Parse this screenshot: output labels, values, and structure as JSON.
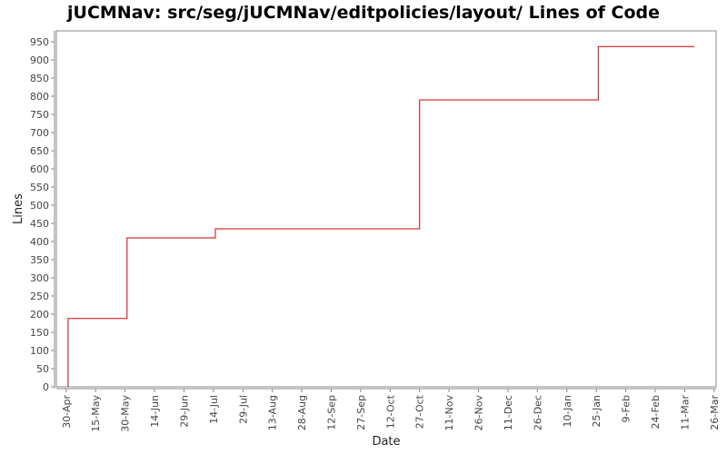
{
  "chart_data": {
    "type": "line",
    "step": true,
    "title": "jUCMNav: src/seg/jUCMNav/editpolicies/layout/ Lines of Code",
    "xlabel": "Date",
    "ylabel": "Lines",
    "ylim": [
      0,
      980
    ],
    "xlim": [
      "2006-04-25",
      "2007-03-27"
    ],
    "yticks": [
      0,
      50,
      100,
      150,
      200,
      250,
      300,
      350,
      400,
      450,
      500,
      550,
      600,
      650,
      700,
      750,
      800,
      850,
      900,
      950
    ],
    "xticks": [
      {
        "date": "2006-04-30",
        "label": "30-Apr"
      },
      {
        "date": "2006-05-15",
        "label": "15-May"
      },
      {
        "date": "2006-05-30",
        "label": "30-May"
      },
      {
        "date": "2006-06-14",
        "label": "14-Jun"
      },
      {
        "date": "2006-06-29",
        "label": "29-Jun"
      },
      {
        "date": "2006-07-14",
        "label": "14-Jul"
      },
      {
        "date": "2006-07-29",
        "label": "29-Jul"
      },
      {
        "date": "2006-08-13",
        "label": "13-Aug"
      },
      {
        "date": "2006-08-28",
        "label": "28-Aug"
      },
      {
        "date": "2006-09-12",
        "label": "12-Sep"
      },
      {
        "date": "2006-09-27",
        "label": "27-Sep"
      },
      {
        "date": "2006-10-12",
        "label": "12-Oct"
      },
      {
        "date": "2006-10-27",
        "label": "27-Oct"
      },
      {
        "date": "2006-11-11",
        "label": "11-Nov"
      },
      {
        "date": "2006-11-26",
        "label": "26-Nov"
      },
      {
        "date": "2006-12-11",
        "label": "11-Dec"
      },
      {
        "date": "2006-12-26",
        "label": "26-Dec"
      },
      {
        "date": "2007-01-10",
        "label": "10-Jan"
      },
      {
        "date": "2007-01-25",
        "label": "25-Jan"
      },
      {
        "date": "2007-02-09",
        "label": "9-Feb"
      },
      {
        "date": "2007-02-24",
        "label": "24-Feb"
      },
      {
        "date": "2007-03-11",
        "label": "11-Mar"
      },
      {
        "date": "2007-03-26",
        "label": "26-Mar"
      }
    ],
    "grid": false,
    "line_color": "#cc0000",
    "series": [
      {
        "points": [
          {
            "date": "2006-05-01",
            "lines": 0
          },
          {
            "date": "2006-05-01",
            "lines": 188
          },
          {
            "date": "2006-05-31",
            "lines": 410
          },
          {
            "date": "2006-07-15",
            "lines": 435
          },
          {
            "date": "2006-10-27",
            "lines": 790
          },
          {
            "date": "2007-01-26",
            "lines": 937
          },
          {
            "date": "2007-03-16",
            "lines": 937
          }
        ]
      }
    ]
  }
}
